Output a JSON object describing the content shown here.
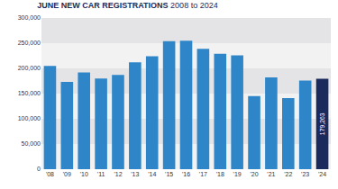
{
  "chart_data": {
    "type": "bar",
    "title": "JUNE NEW CAR REGISTRATIONS",
    "subtitle": "2008 to 2024",
    "categories": [
      "'08",
      "'09",
      "'10",
      "'11",
      "'12",
      "'13",
      "'14",
      "'15",
      "'16",
      "'17",
      "'18",
      "'19",
      "'20",
      "'21",
      "'22",
      "'23",
      "'24"
    ],
    "values": [
      205000,
      173000,
      192000,
      180000,
      187000,
      212000,
      224000,
      254000,
      255000,
      239000,
      229000,
      226000,
      145000,
      182000,
      141000,
      176000,
      179263
    ],
    "value_labels": [
      null,
      null,
      null,
      null,
      null,
      null,
      null,
      null,
      null,
      null,
      null,
      null,
      null,
      null,
      null,
      null,
      "179,263"
    ],
    "data_labels": true,
    "colors": [
      "#2e86c8",
      "#2e86c8",
      "#2e86c8",
      "#2e86c8",
      "#2e86c8",
      "#2e86c8",
      "#2e86c8",
      "#2e86c8",
      "#2e86c8",
      "#2e86c8",
      "#2e86c8",
      "#2e86c8",
      "#2e86c8",
      "#2e86c8",
      "#2e86c8",
      "#2e86c8",
      "#1b2a5c"
    ],
    "ylim": [
      0,
      300000
    ],
    "yticks": [
      0,
      {
        "value": 50000,
        "label": "50,000"
      },
      {
        "value": 100000,
        "label": "100,000"
      },
      {
        "value": 150000,
        "label": "150,000"
      },
      {
        "value": 200000,
        "label": "200,000"
      },
      {
        "value": 250000,
        "label": "250,000"
      },
      {
        "value": 300000,
        "label": "300,000"
      }
    ],
    "grid": true
  }
}
